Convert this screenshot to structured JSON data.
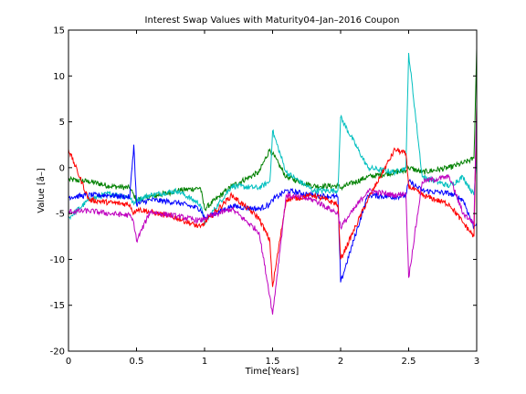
{
  "chart_data": {
    "type": "line",
    "title": "Interest Swap Values with Maturity04–Jan–2016 Coupon",
    "xlabel": "Time[Years]",
    "ylabel": "Value [â–]",
    "xlim": [
      0,
      3
    ],
    "ylim": [
      -20,
      15
    ],
    "xticks": [
      "0",
      "0.5",
      "1",
      "1.5",
      "2",
      "2.5",
      "3"
    ],
    "yticks": [
      "15",
      "10",
      "5",
      "0",
      "-5",
      "-10",
      "-15",
      "-20"
    ],
    "grid": false,
    "series_colors": [
      "#008000",
      "#00bfbf",
      "#0000ff",
      "#ff0000",
      "#bf00bf"
    ],
    "series": [
      {
        "color": "#008000",
        "x": [
          0,
          0.15,
          0.3,
          0.45,
          0.48,
          0.5,
          0.6,
          0.8,
          0.97,
          1.0,
          1.2,
          1.4,
          1.48,
          1.5,
          1.6,
          1.8,
          1.98,
          2.0,
          2.2,
          2.4,
          2.48,
          2.5,
          2.6,
          2.8,
          2.9,
          2.98,
          3.0
        ],
        "y": [
          -1.3,
          -1.5,
          -2.0,
          -2.2,
          -3.0,
          -3.5,
          -3.2,
          -2.5,
          -2.2,
          -4.5,
          -2.0,
          -0.5,
          2.0,
          1.5,
          -1.0,
          -2.0,
          -2.0,
          -2.2,
          -1.0,
          -0.5,
          -0.3,
          0.0,
          -0.5,
          0.0,
          0.5,
          1.0,
          13.0
        ]
      },
      {
        "color": "#00bfbf",
        "x": [
          0,
          0.15,
          0.3,
          0.45,
          0.48,
          0.5,
          0.6,
          0.8,
          0.97,
          1.0,
          1.2,
          1.4,
          1.48,
          1.5,
          1.6,
          1.8,
          1.98,
          2.0,
          2.2,
          2.4,
          2.48,
          2.5,
          2.6,
          2.8,
          2.9,
          2.98,
          3.0
        ],
        "y": [
          -5.5,
          -3.5,
          -2.8,
          -3.2,
          -4.0,
          -3.5,
          -3.0,
          -2.5,
          -4.0,
          -6.0,
          -2.0,
          -2.2,
          -1.5,
          4.0,
          -0.5,
          -2.5,
          -2.5,
          5.5,
          0.0,
          -0.5,
          0.0,
          12.5,
          -1.0,
          -2.0,
          -1.0,
          -3.0,
          1.5
        ]
      },
      {
        "color": "#0000ff",
        "x": [
          0,
          0.15,
          0.3,
          0.45,
          0.48,
          0.5,
          0.6,
          0.8,
          0.97,
          1.0,
          1.2,
          1.4,
          1.48,
          1.5,
          1.6,
          1.8,
          1.98,
          2.0,
          2.2,
          2.4,
          2.48,
          2.5,
          2.6,
          2.8,
          2.9,
          2.98,
          3.0
        ],
        "y": [
          -3.2,
          -3.0,
          -3.0,
          -3.2,
          2.5,
          -4.0,
          -3.5,
          -3.8,
          -4.5,
          -5.5,
          -4.2,
          -4.5,
          -4.0,
          -3.5,
          -2.5,
          -3.0,
          -3.2,
          -12.5,
          -3.0,
          -3.2,
          -3.0,
          -1.5,
          -2.5,
          -2.8,
          -3.5,
          -6.5,
          -6.0
        ]
      },
      {
        "color": "#ff0000",
        "x": [
          0,
          0.15,
          0.3,
          0.45,
          0.48,
          0.5,
          0.6,
          0.8,
          0.97,
          1.0,
          1.2,
          1.4,
          1.48,
          1.5,
          1.6,
          1.8,
          1.98,
          2.0,
          2.2,
          2.4,
          2.48,
          2.5,
          2.6,
          2.8,
          2.9,
          2.98,
          3.0
        ],
        "y": [
          2.0,
          -3.5,
          -3.8,
          -4.0,
          -5.0,
          -4.5,
          -4.8,
          -5.5,
          -6.5,
          -6.0,
          -3.0,
          -5.5,
          -8.0,
          -13.0,
          -3.5,
          -3.0,
          -4.0,
          -10.0,
          -3.5,
          2.0,
          1.5,
          -2.0,
          -3.0,
          -4.0,
          -6.0,
          -7.5,
          6.5
        ]
      },
      {
        "color": "#bf00bf",
        "x": [
          0,
          0.15,
          0.3,
          0.45,
          0.48,
          0.5,
          0.6,
          0.8,
          0.97,
          1.0,
          1.2,
          1.4,
          1.48,
          1.5,
          1.6,
          1.8,
          1.98,
          2.0,
          2.2,
          2.4,
          2.48,
          2.5,
          2.6,
          2.8,
          2.9,
          2.98,
          3.0
        ],
        "y": [
          -4.8,
          -4.7,
          -5.0,
          -5.2,
          -6.0,
          -8.0,
          -4.8,
          -5.3,
          -5.8,
          -5.5,
          -4.5,
          -7.0,
          -14.0,
          -16.0,
          -3.0,
          -3.5,
          -5.0,
          -6.5,
          -2.5,
          -3.0,
          -2.8,
          -12.0,
          -1.5,
          -1.0,
          -5.0,
          -6.0,
          7.0
        ]
      }
    ]
  }
}
